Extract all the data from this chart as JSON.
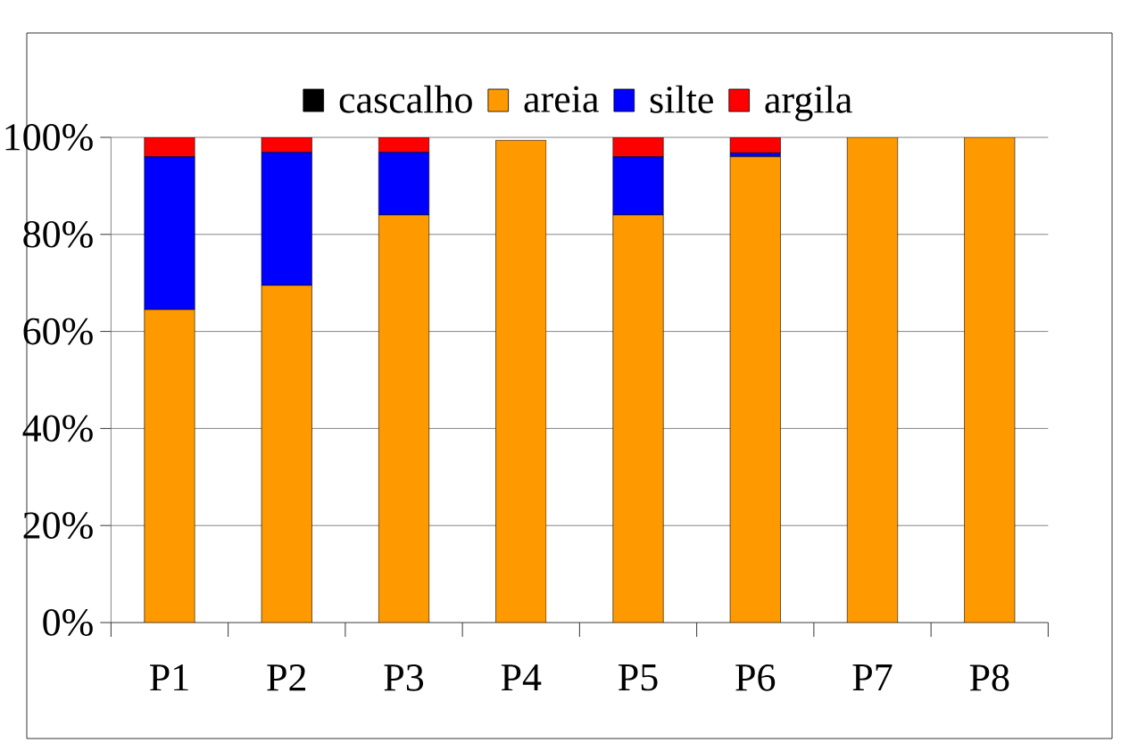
{
  "chart_data": {
    "type": "bar",
    "stacked": true,
    "categories": [
      "P1",
      "P2",
      "P3",
      "P4",
      "P5",
      "P6",
      "P7",
      "P8"
    ],
    "series": [
      {
        "name": "cascalho",
        "color": "#000000",
        "values": [
          0,
          0,
          0,
          0,
          0,
          0,
          0,
          0
        ]
      },
      {
        "name": "areia",
        "color": "#ff9900",
        "values": [
          64.5,
          69.5,
          84,
          99.4,
          84,
          96,
          100,
          100
        ]
      },
      {
        "name": "silte",
        "color": "#0000ff",
        "values": [
          31.5,
          27.4,
          12.9,
          0,
          12,
          0.8,
          0,
          0
        ]
      },
      {
        "name": "argila",
        "color": "#ff0000",
        "values": [
          4,
          3.1,
          3.1,
          null,
          4,
          3.2,
          0,
          0
        ]
      }
    ],
    "ylim": [
      0,
      100
    ],
    "yticks": [
      {
        "value": 0,
        "label": "0%"
      },
      {
        "value": 20,
        "label": "20%"
      },
      {
        "value": 40,
        "label": "40%"
      },
      {
        "value": 60,
        "label": "60%"
      },
      {
        "value": 80,
        "label": "80%"
      },
      {
        "value": 100,
        "label": "100%"
      }
    ],
    "grid": "y",
    "legend": "top"
  }
}
